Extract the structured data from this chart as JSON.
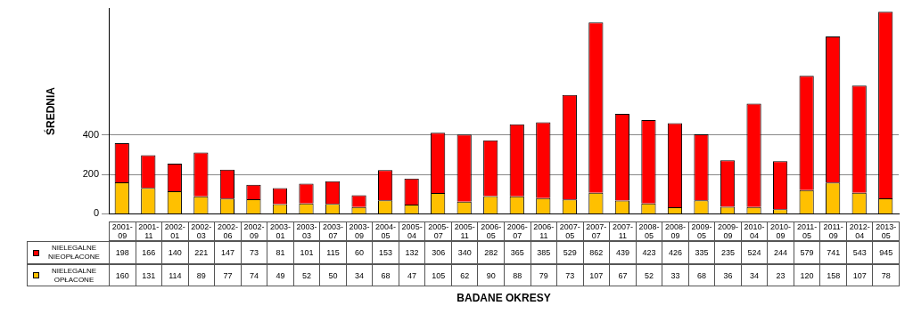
{
  "chart_data": {
    "type": "bar",
    "stacked": true,
    "ylabel": "ŚREDNIA",
    "xlabel": "BADANE OKRESY",
    "categories": [
      "2001-09",
      "2001-11",
      "2002-01",
      "2002-03",
      "2002-06",
      "2002-09",
      "2003-01",
      "2003-03",
      "2003-07",
      "2003-09",
      "2004-05",
      "2005-04",
      "2005-07",
      "2005-11",
      "2006-05",
      "2006-07",
      "2006-11",
      "2007-05",
      "2007-07",
      "2007-11",
      "2008-05",
      "2008-09",
      "2009-05",
      "2009-09",
      "2010-04",
      "2010-09",
      "2011-05",
      "2011-09",
      "2012-04",
      "2013-05"
    ],
    "series": [
      {
        "name": "NIELEGALNE OPŁACONE",
        "color": "#ffc000",
        "values": [
          160,
          131,
          114,
          89,
          77,
          74,
          49,
          52,
          50,
          34,
          68,
          47,
          105,
          62,
          90,
          88,
          79,
          73,
          107,
          67,
          52,
          33,
          68,
          36,
          34,
          23,
          120,
          158,
          107,
          78
        ]
      },
      {
        "name": "NIELEGALNE NIEOPŁACONE",
        "color": "#ff0000",
        "values": [
          198,
          166,
          140,
          221,
          147,
          73,
          81,
          101,
          115,
          60,
          153,
          132,
          306,
          340,
          282,
          365,
          385,
          529,
          862,
          439,
          423,
          426,
          335,
          235,
          524,
          244,
          579,
          741,
          543,
          945
        ]
      }
    ],
    "ylim": [
      0,
      1040
    ],
    "yticks": [
      0,
      200,
      400
    ],
    "grid": "y",
    "legend": "bottom",
    "data_labels": true
  }
}
